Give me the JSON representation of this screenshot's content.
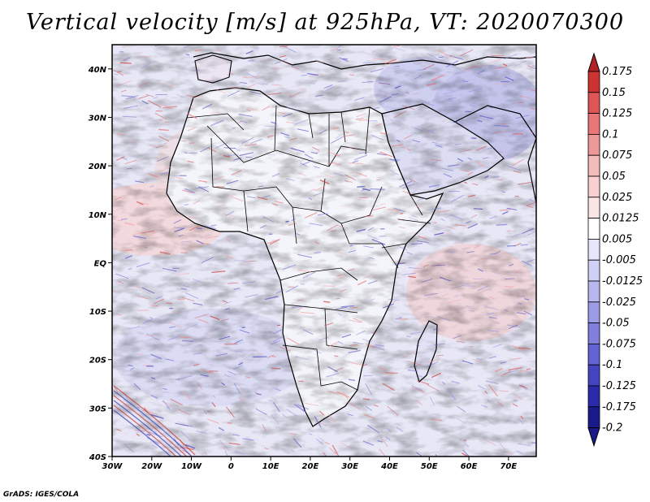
{
  "title": "Vertical velocity [m/s] at 925hPa, VT: 2020070300",
  "credit": "GrADS: IGES/COLA",
  "map": {
    "variable": "Vertical velocity",
    "units": "m/s",
    "level": "925hPa",
    "valid_time": "2020070300",
    "lon_range": [
      -30,
      77
    ],
    "lat_range": [
      -40,
      45
    ],
    "x_ticks": [
      "30W",
      "20W",
      "10W",
      "0",
      "10E",
      "20E",
      "30E",
      "40E",
      "50E",
      "60E",
      "70E"
    ],
    "x_tick_values": [
      -30,
      -20,
      -10,
      0,
      10,
      20,
      30,
      40,
      50,
      60,
      70
    ],
    "y_ticks": [
      "40N",
      "30N",
      "20N",
      "10N",
      "EQ",
      "10S",
      "20S",
      "30S",
      "40S"
    ],
    "y_tick_values": [
      40,
      30,
      20,
      10,
      0,
      -10,
      -20,
      -30,
      -40
    ]
  },
  "colorbar": {
    "labels": [
      "0.175",
      "0.15",
      "0.125",
      "0.1",
      "0.075",
      "0.05",
      "0.025",
      "0.0125",
      "0.005",
      "-0.005",
      "-0.0125",
      "-0.025",
      "-0.05",
      "-0.075",
      "-0.1",
      "-0.125",
      "-0.175",
      "-0.2"
    ],
    "colors": [
      "#b22222",
      "#cc3333",
      "#dd5555",
      "#e87777",
      "#ee9999",
      "#f4bbbb",
      "#f8d0d0",
      "#fbe4e4",
      "#ffffff",
      "#e6e6fa",
      "#d0d0f4",
      "#b8b8ee",
      "#9c9ce6",
      "#8080dc",
      "#6262d0",
      "#4444c0",
      "#2a2aaa",
      "#1a1a8a"
    ]
  }
}
